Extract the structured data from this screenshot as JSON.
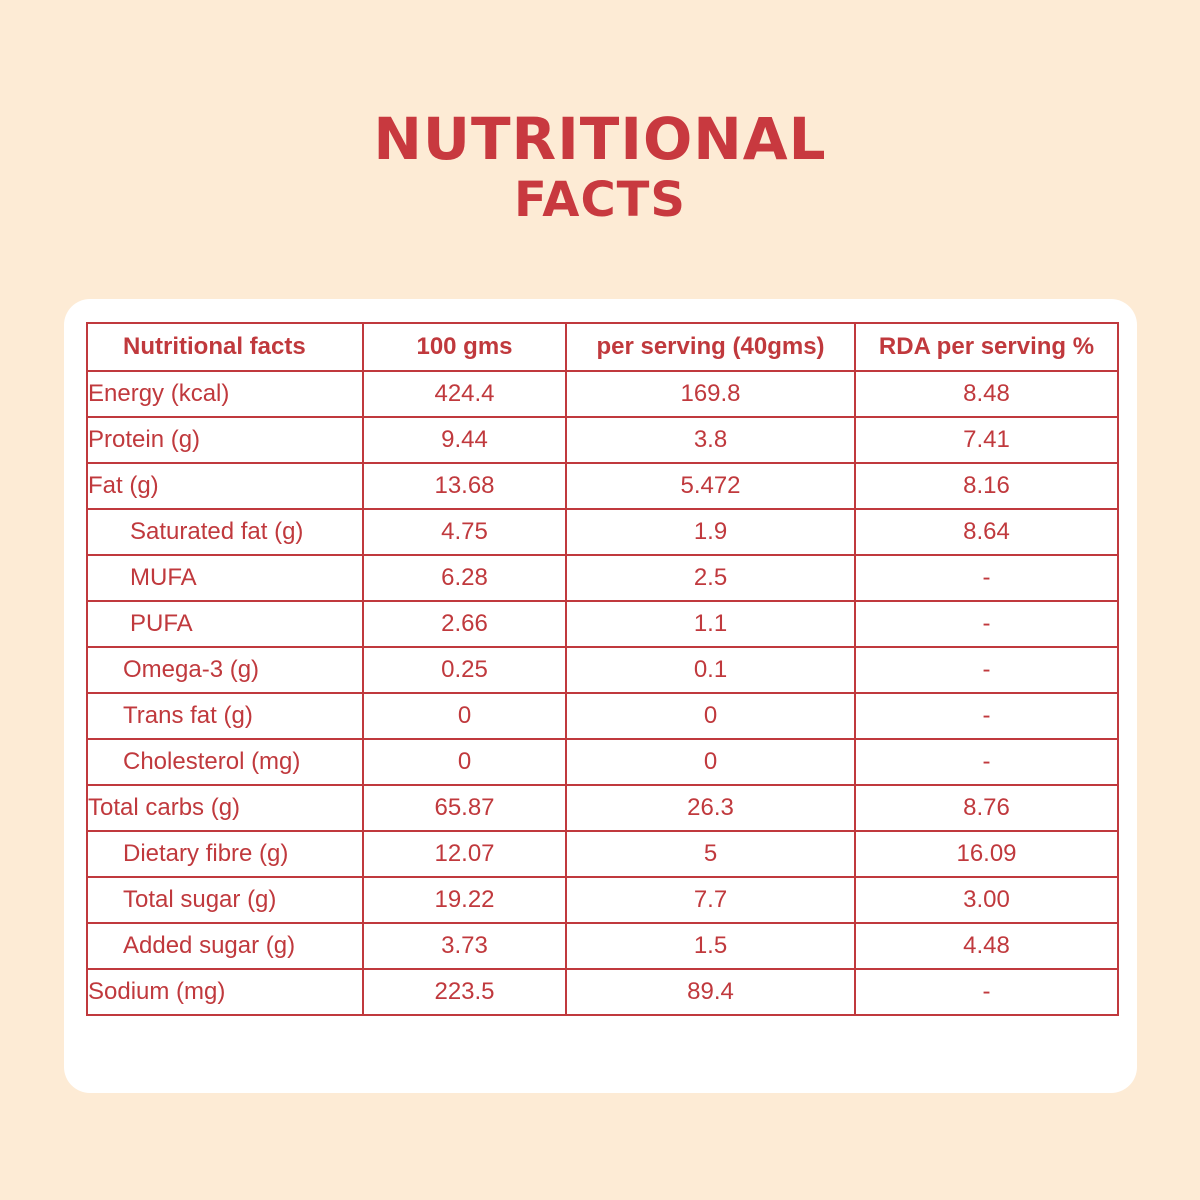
{
  "title": {
    "line1": "Nutritional",
    "line2": "Facts"
  },
  "table": {
    "headers": [
      "Nutritional facts",
      "100 gms",
      "per serving (40gms)",
      "RDA per serving %"
    ],
    "rows": [
      {
        "label": "Energy (kcal)",
        "indent": 0,
        "per100": "424.4",
        "serving": "169.8",
        "rda": "8.48"
      },
      {
        "label": "Protein (g)",
        "indent": 0,
        "per100": "9.44",
        "serving": "3.8",
        "rda": "7.41"
      },
      {
        "label": "Fat (g)",
        "indent": 0,
        "per100": "13.68",
        "serving": "5.472",
        "rda": "8.16"
      },
      {
        "label": "Saturated fat (g)",
        "indent": 1,
        "per100": "4.75",
        "serving": "1.9",
        "rda": "8.64"
      },
      {
        "label": "MUFA",
        "indent": 1,
        "per100": "6.28",
        "serving": "2.5",
        "rda": "-"
      },
      {
        "label": "PUFA",
        "indent": 1,
        "per100": "2.66",
        "serving": "1.1",
        "rda": "-"
      },
      {
        "label": "Omega-3 (g)",
        "indent": 2,
        "per100": "0.25",
        "serving": "0.1",
        "rda": "-"
      },
      {
        "label": "Trans fat (g)",
        "indent": 2,
        "per100": "0",
        "serving": "0",
        "rda": "-"
      },
      {
        "label": "Cholesterol (mg)",
        "indent": 2,
        "per100": "0",
        "serving": "0",
        "rda": "-"
      },
      {
        "label": "Total carbs (g)",
        "indent": 0,
        "per100": "65.87",
        "serving": "26.3",
        "rda": "8.76"
      },
      {
        "label": "Dietary fibre (g)",
        "indent": 2,
        "per100": "12.07",
        "serving": "5",
        "rda": "16.09"
      },
      {
        "label": "Total sugar (g)",
        "indent": 2,
        "per100": "19.22",
        "serving": "7.7",
        "rda": "3.00"
      },
      {
        "label": "Added sugar (g)",
        "indent": 2,
        "per100": "3.73",
        "serving": "1.5",
        "rda": "4.48"
      },
      {
        "label": "Sodium (mg)",
        "indent": 0,
        "per100": "223.5",
        "serving": "89.4",
        "rda": "-"
      }
    ]
  },
  "colors": {
    "background": "#fdebd5",
    "accent": "#c0393d",
    "card": "#ffffff"
  }
}
